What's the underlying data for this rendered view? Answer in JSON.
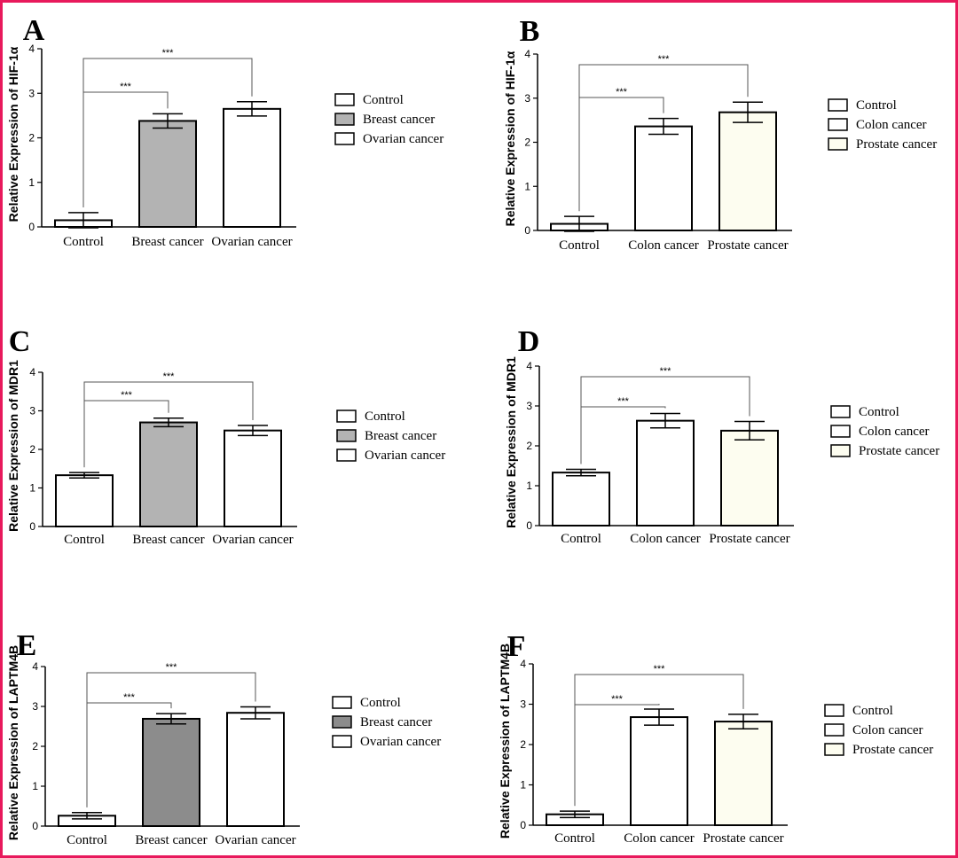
{
  "chart_data": [
    {
      "panel": "A",
      "type": "bar",
      "ylabel": "Relative Expression of HIF-1α",
      "ylim": [
        0,
        4
      ],
      "yticks": [
        "0",
        "1",
        "2",
        "3",
        "4"
      ],
      "categories": [
        "Control",
        "Breast cancer",
        "Ovarian cancer"
      ],
      "values": [
        0.15,
        2.38,
        2.65
      ],
      "errors": [
        0.17,
        0.16,
        0.16
      ],
      "colors": [
        "#ffffff",
        "#b3b3b3",
        "#ffffff"
      ],
      "legend": [
        "Control",
        "Breast cancer",
        "Ovarian cancer"
      ],
      "significance": [
        {
          "from": 0,
          "to": 1,
          "label": "***"
        },
        {
          "from": 0,
          "to": 2,
          "label": "***"
        }
      ]
    },
    {
      "panel": "B",
      "type": "bar",
      "ylabel": "Relative Expression of HIF-1α",
      "ylim": [
        0,
        4
      ],
      "yticks": [
        "0",
        "1",
        "2",
        "3",
        "4"
      ],
      "categories": [
        "Control",
        "Colon cancer",
        "Prostate cancer"
      ],
      "values": [
        0.15,
        2.36,
        2.68
      ],
      "errors": [
        0.17,
        0.18,
        0.23
      ],
      "colors": [
        "#ffffff",
        "#ffffff",
        "#fdfdf0"
      ],
      "legend": [
        "Control",
        "Colon cancer",
        "Prostate cancer"
      ],
      "significance": [
        {
          "from": 0,
          "to": 1,
          "label": "***"
        },
        {
          "from": 0,
          "to": 2,
          "label": "***"
        }
      ]
    },
    {
      "panel": "C",
      "type": "bar",
      "ylabel": "Relative Expression of MDR1",
      "ylim": [
        0,
        4
      ],
      "yticks": [
        "0",
        "1",
        "2",
        "3",
        "4"
      ],
      "categories": [
        "Control",
        "Breast cancer",
        "Ovarian cancer"
      ],
      "values": [
        1.33,
        2.7,
        2.49
      ],
      "errors": [
        0.07,
        0.11,
        0.13
      ],
      "colors": [
        "#ffffff",
        "#b3b3b3",
        "#ffffff"
      ],
      "legend": [
        "Control",
        "Breast cancer",
        "Ovarian cancer"
      ],
      "significance": [
        {
          "from": 0,
          "to": 1,
          "label": "***"
        },
        {
          "from": 0,
          "to": 2,
          "label": "***"
        }
      ]
    },
    {
      "panel": "D",
      "type": "bar",
      "ylabel": "Relative Expression of MDR1",
      "ylim": [
        0,
        4
      ],
      "yticks": [
        "0",
        "1",
        "2",
        "3",
        "4"
      ],
      "categories": [
        "Control",
        "Colon cancer",
        "Prostate cancer"
      ],
      "values": [
        1.33,
        2.63,
        2.38
      ],
      "errors": [
        0.08,
        0.18,
        0.23
      ],
      "colors": [
        "#ffffff",
        "#ffffff",
        "#fdfdf0"
      ],
      "legend": [
        "Control",
        "Colon cancer",
        "Prostate cancer"
      ],
      "significance": [
        {
          "from": 0,
          "to": 1,
          "label": "***"
        },
        {
          "from": 0,
          "to": 2,
          "label": "***"
        }
      ]
    },
    {
      "panel": "E",
      "type": "bar",
      "ylabel": "Relative Expression of LAPTM4B",
      "ylim": [
        0,
        4
      ],
      "yticks": [
        "0",
        "1",
        "2",
        "3",
        "4"
      ],
      "categories": [
        "Control",
        "Breast cancer",
        "Ovarian cancer"
      ],
      "values": [
        0.26,
        2.69,
        2.84
      ],
      "errors": [
        0.08,
        0.13,
        0.15
      ],
      "colors": [
        "#ffffff",
        "#8c8c8c",
        "#ffffff"
      ],
      "legend": [
        "Control",
        "Breast cancer",
        "Ovarian cancer"
      ],
      "significance": [
        {
          "from": 0,
          "to": 1,
          "label": "***"
        },
        {
          "from": 0,
          "to": 2,
          "label": "***"
        }
      ]
    },
    {
      "panel": "F",
      "type": "bar",
      "ylabel": "Relative Expression of LAPTM4B",
      "ylim": [
        0,
        4
      ],
      "yticks": [
        "0",
        "1",
        "2",
        "3",
        "4"
      ],
      "categories": [
        "Control",
        "Colon cancer",
        "Prostate cancer"
      ],
      "values": [
        0.27,
        2.68,
        2.57
      ],
      "errors": [
        0.08,
        0.2,
        0.18
      ],
      "colors": [
        "#ffffff",
        "#ffffff",
        "#fdfdf0"
      ],
      "legend": [
        "Control",
        "Colon cancer",
        "Prostate cancer"
      ],
      "significance": [
        {
          "from": 0,
          "to": 1,
          "label": "***"
        },
        {
          "from": 0,
          "to": 2,
          "label": "***"
        }
      ]
    }
  ],
  "frame_color": "#e8195c"
}
